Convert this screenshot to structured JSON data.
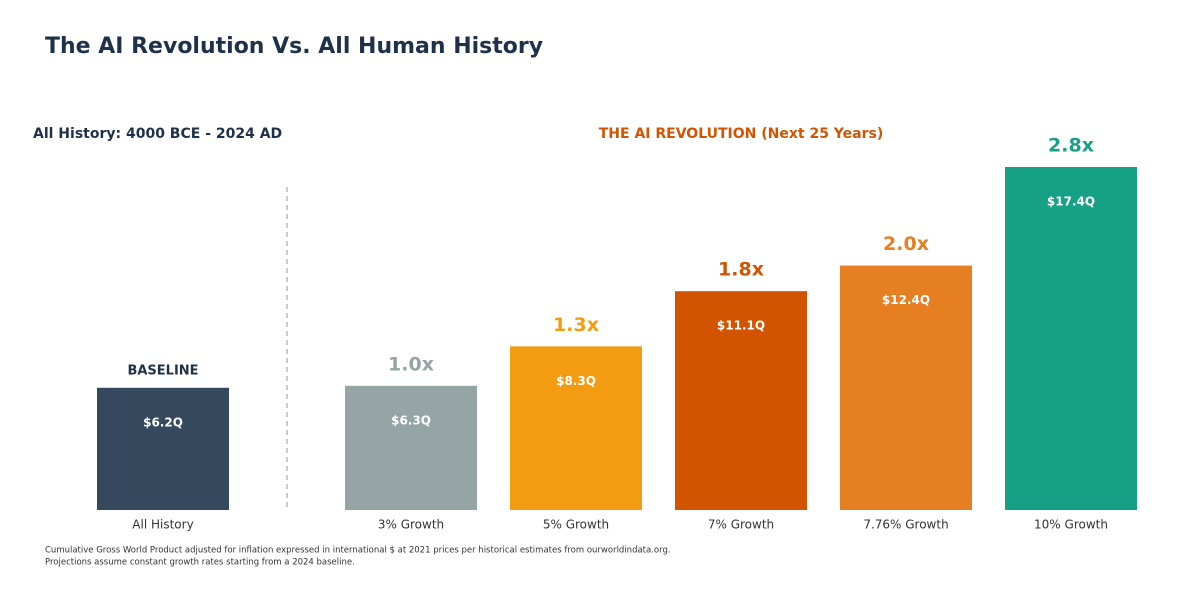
{
  "chart_data": {
    "type": "bar",
    "title": "The AI Revolution Vs. All Human History",
    "left_heading": "All History: 4000 BCE - 2024 AD",
    "right_heading": "THE AI REVOLUTION (Next 25 Years)",
    "categories": [
      "All History",
      "3% Growth",
      "5% Growth",
      "7% Growth",
      "7.76% Growth",
      "10% Growth"
    ],
    "values": [
      6.2,
      6.3,
      8.3,
      11.1,
      12.4,
      17.4
    ],
    "value_labels": [
      "$6.2Q",
      "$6.3Q",
      "$8.3Q",
      "$11.1Q",
      "$12.4Q",
      "$17.4Q"
    ],
    "colors": [
      "#34495e",
      "#95a5a6",
      "#f39c12",
      "#d35400",
      "#e67e22",
      "#16a085"
    ],
    "top_labels": [
      "BASELINE",
      "1.0x",
      "1.3x",
      "1.8x",
      "2.0x",
      "2.8x"
    ],
    "top_label_colors": [
      "#1f3149",
      "#95a5a6",
      "#f39c12",
      "#d35400",
      "#e67e22",
      "#16a085"
    ],
    "footnotes": [
      "Cumulative Gross World Product adjusted for inflation expressed in international $ at 2021 prices per historical estimates from ourworldindata.org.",
      "Projections assume constant growth rates starting from a 2024 baseline."
    ]
  }
}
